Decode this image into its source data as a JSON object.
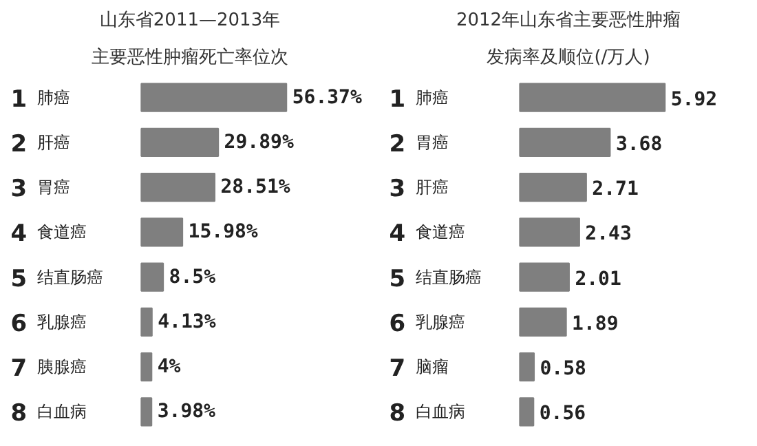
{
  "chart_data": [
    {
      "type": "bar",
      "orientation": "horizontal",
      "title": "山东省2011—2013年",
      "subtitle": "主要恶性肿瘤死亡率位次",
      "categories": [
        "1 肺癌",
        "2 肝癌",
        "3 胃癌",
        "4 食道癌",
        "5 结直肠癌",
        "6 乳腺癌",
        "7 胰腺癌",
        "8 白血病"
      ],
      "values": [
        56.37,
        29.89,
        28.51,
        15.98,
        8.5,
        4.13,
        4,
        3.98
      ],
      "value_labels": [
        "56.37%",
        "29.89%",
        "28.51%",
        "15.98%",
        "8.5%",
        "4.13%",
        "4%",
        "3.98%"
      ],
      "color": "#7f7f7f"
    },
    {
      "type": "bar",
      "orientation": "horizontal",
      "title": "2012年山东省主要恶性肿瘤",
      "subtitle": "发病率及顺位(/万人)",
      "categories": [
        "1 肺癌",
        "2 胃癌",
        "3 肝癌",
        "4 食道癌",
        "5 结直肠癌",
        "6 乳腺癌",
        "7 脑瘤",
        "8 白血病"
      ],
      "values": [
        5.92,
        3.68,
        2.71,
        2.43,
        2.01,
        1.89,
        0.58,
        0.56
      ],
      "data_labels": true,
      "color": "#7f7f7f"
    }
  ]
}
